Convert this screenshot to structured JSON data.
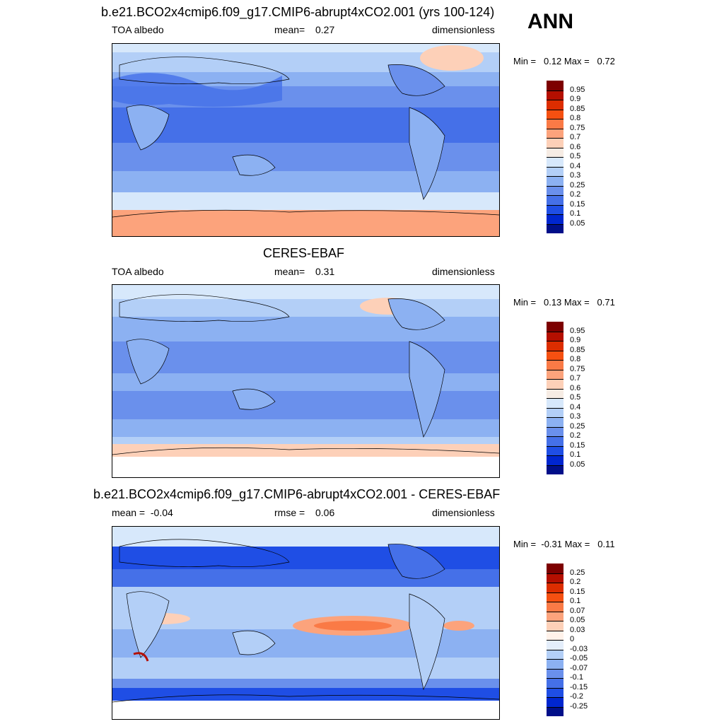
{
  "corner_label": "ANN",
  "panels": [
    {
      "title": "b.e21.BCO2x4cmip6.f09_g17.CMIP6-abrupt4xCO2.001 (yrs 100-124)",
      "left_label": "TOA albedo",
      "center_key": "mean=",
      "center_value": "0.27",
      "right_label": "dimensionless",
      "minmax": "Min =   0.12 Max =   0.72",
      "levels": [
        "0.95",
        "0.9",
        "0.85",
        "0.8",
        "0.75",
        "0.7",
        "0.6",
        "0.5",
        "0.4",
        "0.3",
        "0.25",
        "0.2",
        "0.15",
        "0.1",
        "0.05"
      ],
      "colors": [
        "#7d0000",
        "#b40f00",
        "#dc2d00",
        "#f55011",
        "#fa7a46",
        "#fca37c",
        "#fdd0b8",
        "#f6ece4",
        "#d7e8fb",
        "#b3cff7",
        "#8cb1f2",
        "#6a90ec",
        "#4570e8",
        "#1f4ee5",
        "#0026cf",
        "#000f89"
      ]
    },
    {
      "title": "CERES-EBAF",
      "left_label": "TOA albedo",
      "center_key": "mean=",
      "center_value": "0.31",
      "right_label": "dimensionless",
      "minmax": "Min =   0.13 Max =   0.71",
      "levels": [
        "0.95",
        "0.9",
        "0.85",
        "0.8",
        "0.75",
        "0.7",
        "0.6",
        "0.5",
        "0.4",
        "0.3",
        "0.25",
        "0.2",
        "0.15",
        "0.1",
        "0.05"
      ],
      "colors": [
        "#7d0000",
        "#b40f00",
        "#dc2d00",
        "#f55011",
        "#fa7a46",
        "#fca37c",
        "#fdd0b8",
        "#f6ece4",
        "#d7e8fb",
        "#b3cff7",
        "#8cb1f2",
        "#6a90ec",
        "#4570e8",
        "#1f4ee5",
        "#0026cf",
        "#000f89"
      ]
    },
    {
      "title": "b.e21.BCO2x4cmip6.f09_g17.CMIP6-abrupt4xCO2.001 - CERES-EBAF",
      "left_label": "mean =  -0.04",
      "center_key": "rmse =",
      "center_value": "0.06",
      "right_label": "dimensionless",
      "minmax": "Min =  -0.31 Max =   0.11",
      "levels": [
        "0.25",
        "0.2",
        "0.15",
        "0.1",
        "0.07",
        "0.05",
        "0.03",
        "0",
        "-0.03",
        "-0.05",
        "-0.07",
        "-0.1",
        "-0.15",
        "-0.2",
        "-0.25"
      ],
      "colors": [
        "#7d0000",
        "#b40f00",
        "#dc2d00",
        "#f55011",
        "#fa7a46",
        "#fca37c",
        "#fdd0b8",
        "#fff2ea",
        "#e4eefb",
        "#b3cff7",
        "#8cb1f2",
        "#6a90ec",
        "#4570e8",
        "#1f4ee5",
        "#0026cf",
        "#000f89"
      ]
    }
  ]
}
